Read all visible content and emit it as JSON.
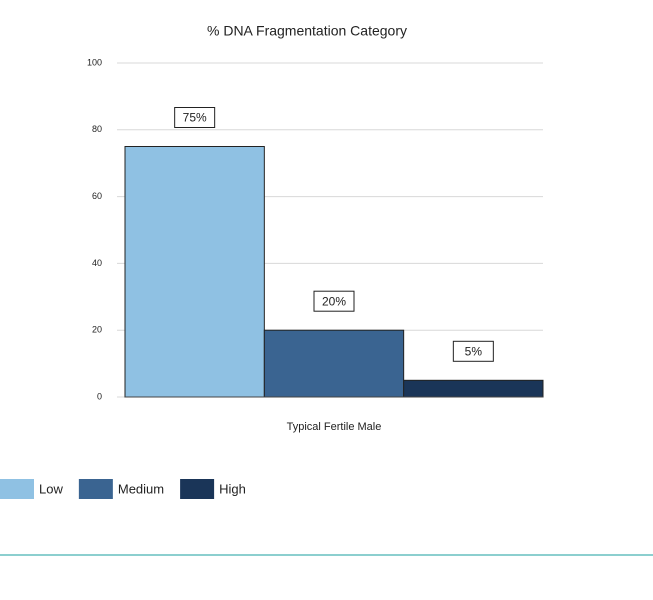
{
  "chart_data": {
    "type": "bar",
    "title": "% DNA Fragmentation Category",
    "categories": [
      "Typical Fertile Male"
    ],
    "series": [
      {
        "name": "Low",
        "color": "#8fc1e3",
        "values": [
          75
        ],
        "value_labels": [
          "75%"
        ]
      },
      {
        "name": "Medium",
        "color": "#3a6491",
        "values": [
          20
        ],
        "value_labels": [
          "20%"
        ]
      },
      {
        "name": "High",
        "color": "#1a3558",
        "values": [
          5
        ],
        "value_labels": [
          "5%"
        ]
      }
    ],
    "ylim": [
      0,
      100
    ],
    "yticks": [
      0,
      20,
      40,
      60,
      80,
      100
    ],
    "grid": true,
    "legend": "bottom"
  }
}
